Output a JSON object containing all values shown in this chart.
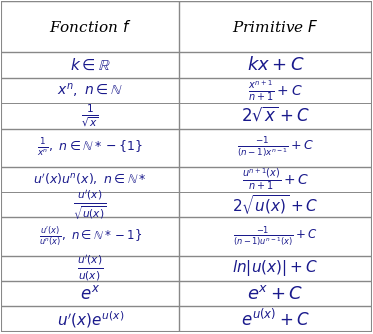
{
  "title_left": "Fonction $f$",
  "title_right": "Primitive $F$",
  "rows": [
    [
      "$k \\in \\mathbb{R}$",
      "$kx + C$"
    ],
    [
      "$x^n,\\ n \\in \\mathbb{N}$\n$\\frac{1}{\\sqrt{x}}$",
      "$\\frac{x^{n+1}}{n+1} + C$\n$2\\sqrt{x} + C$"
    ],
    [
      "$\\frac{1}{x^n},\\ n \\in \\mathbb{N}*-\\{1\\}$",
      "$\\frac{-1}{(n-1)x^{n-1}} + C$"
    ],
    [
      "$u'(x)u^n(x),\\ n \\in \\mathbb{N}*$\n$\\frac{u'(x)}{\\sqrt{u(x)}}$",
      "$\\frac{u^{n+1}(x)}{n+1} + C$\n$2\\sqrt{u(x)} + C$"
    ],
    [
      "$\\frac{u'(x)}{u^n(x)},\\ n \\in \\mathbb{N}*-1\\}$",
      "$\\frac{-1}{(n-1)u^{n-1}(x)} + C$"
    ],
    [
      "$\\frac{u'(x)}{u(x)}$",
      "$ln|u(x)| + C$"
    ],
    [
      "$e^x$",
      "$e^x + C$"
    ],
    [
      "$u'(x)e^{u(x)}$",
      "$e^{u(x)} + C$"
    ]
  ],
  "border_color": "#888888",
  "header_color": "#000000",
  "text_color": "#1a1a8c",
  "figsize": [
    3.73,
    3.34
  ],
  "dpi": 100
}
